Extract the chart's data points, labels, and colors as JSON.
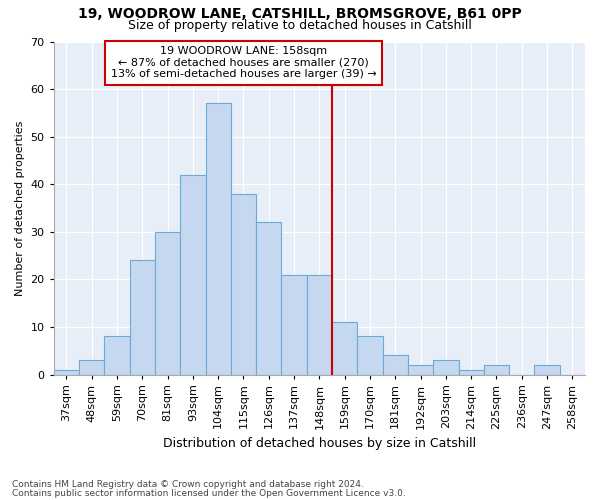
{
  "title1": "19, WOODROW LANE, CATSHILL, BROMSGROVE, B61 0PP",
  "title2": "Size of property relative to detached houses in Catshill",
  "xlabel": "Distribution of detached houses by size in Catshill",
  "ylabel": "Number of detached properties",
  "footnote1": "Contains HM Land Registry data © Crown copyright and database right 2024.",
  "footnote2": "Contains public sector information licensed under the Open Government Licence v3.0.",
  "bar_labels": [
    "37sqm",
    "48sqm",
    "59sqm",
    "70sqm",
    "81sqm",
    "93sqm",
    "104sqm",
    "115sqm",
    "126sqm",
    "137sqm",
    "148sqm",
    "159sqm",
    "170sqm",
    "181sqm",
    "192sqm",
    "203sqm",
    "214sqm",
    "225sqm",
    "236sqm",
    "247sqm",
    "258sqm"
  ],
  "bar_values": [
    1,
    3,
    8,
    24,
    30,
    42,
    57,
    38,
    32,
    21,
    21,
    11,
    8,
    4,
    2,
    3,
    1,
    2,
    0,
    2,
    0
  ],
  "bar_color": "#c5d8f0",
  "bar_edge_color": "#6aaad4",
  "vline_color": "#cc0000",
  "annotation_text": "19 WOODROW LANE: 158sqm\n← 87% of detached houses are smaller (270)\n13% of semi-detached houses are larger (39) →",
  "annotation_box_color": "#cc0000",
  "ylim": [
    0,
    70
  ],
  "yticks": [
    0,
    10,
    20,
    30,
    40,
    50,
    60,
    70
  ],
  "fig_bg_color": "#ffffff",
  "plot_bg_color": "#e8eef8",
  "grid_color": "#ffffff",
  "title1_fontsize": 10,
  "title2_fontsize": 9,
  "xlabel_fontsize": 9,
  "ylabel_fontsize": 8,
  "tick_fontsize": 8,
  "footnote_fontsize": 6.5,
  "vline_x_index": 11
}
